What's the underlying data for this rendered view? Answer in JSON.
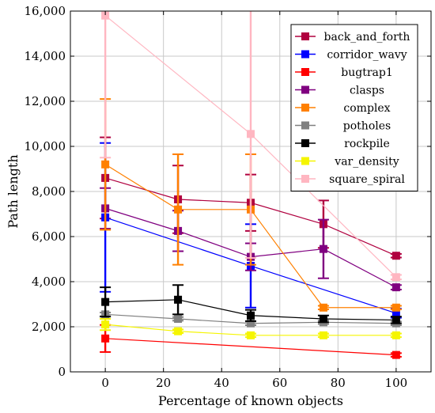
{
  "chart_data": {
    "type": "line",
    "title": "",
    "xlabel": "Percentage of known objects",
    "ylabel": "Path length",
    "xlim": [
      -12,
      112
    ],
    "ylim": [
      0,
      16000
    ],
    "x_ticks": [
      0,
      20,
      40,
      60,
      80,
      100
    ],
    "x_tick_labels": [
      "0",
      "20",
      "40",
      "60",
      "80",
      "100"
    ],
    "y_ticks": [
      0,
      2000,
      4000,
      6000,
      8000,
      10000,
      12000,
      14000,
      16000
    ],
    "y_tick_labels": [
      "0",
      "2,000",
      "4,000",
      "6,000",
      "8,000",
      "10,000",
      "12,000",
      "14,000",
      "16,000"
    ],
    "grid": true,
    "legend_position": "top-right",
    "series": [
      {
        "name": "back_and_forth",
        "color": "#b0003f",
        "marker": "square",
        "points": [
          {
            "x": 0,
            "y": 8600,
            "err": 1800
          },
          {
            "x": 25,
            "y": 7650,
            "err": 1500
          },
          {
            "x": 50,
            "y": 7500,
            "err": 1250
          },
          {
            "x": 75,
            "y": 6550,
            "err": 1050
          },
          {
            "x": 100,
            "y": 5150,
            "err": 80
          }
        ]
      },
      {
        "name": "corridor_wavy",
        "color": "#0000ff",
        "marker": "square",
        "points": [
          {
            "x": 0,
            "y": 6850,
            "err": 3300
          },
          {
            "x": 50,
            "y": 4700,
            "err": 1850
          },
          {
            "x": 100,
            "y": 2600,
            "err": 200
          }
        ]
      },
      {
        "name": "bugtrap1",
        "color": "#ff0000",
        "marker": "square",
        "points": [
          {
            "x": 0,
            "y": 1480,
            "err": 600
          },
          {
            "x": 100,
            "y": 750,
            "err": 80
          }
        ]
      },
      {
        "name": "clasps",
        "color": "#800080",
        "marker": "square",
        "points": [
          {
            "x": 0,
            "y": 7250,
            "err": 900
          },
          {
            "x": 25,
            "y": 6250,
            "err": 900
          },
          {
            "x": 50,
            "y": 5100,
            "err": 600
          },
          {
            "x": 75,
            "y": 5450,
            "err": 1300
          },
          {
            "x": 100,
            "y": 3750,
            "err": 100
          }
        ]
      },
      {
        "name": "complex",
        "color": "#ff8000",
        "marker": "square",
        "points": [
          {
            "x": 0,
            "y": 9200,
            "err": 2900
          },
          {
            "x": 25,
            "y": 7200,
            "err": 2450
          },
          {
            "x": 50,
            "y": 7200,
            "err": 2450
          },
          {
            "x": 75,
            "y": 2850,
            "err": 80
          },
          {
            "x": 100,
            "y": 2850,
            "err": 80
          }
        ]
      },
      {
        "name": "potholes",
        "color": "#808080",
        "marker": "square",
        "points": [
          {
            "x": 0,
            "y": 2550,
            "err": 80
          },
          {
            "x": 25,
            "y": 2350,
            "err": 80
          },
          {
            "x": 50,
            "y": 2150,
            "err": 80
          },
          {
            "x": 75,
            "y": 2200,
            "err": 80
          },
          {
            "x": 100,
            "y": 2150,
            "err": 80
          }
        ]
      },
      {
        "name": "rockpile",
        "color": "#000000",
        "marker": "square",
        "points": [
          {
            "x": 0,
            "y": 3100,
            "err": 650
          },
          {
            "x": 25,
            "y": 3200,
            "err": 650
          },
          {
            "x": 50,
            "y": 2500,
            "err": 250
          },
          {
            "x": 75,
            "y": 2350,
            "err": 150
          },
          {
            "x": 100,
            "y": 2300,
            "err": 150
          }
        ]
      },
      {
        "name": "var_density",
        "color": "#f5f500",
        "marker": "square",
        "points": [
          {
            "x": 0,
            "y": 2100,
            "err": 250
          },
          {
            "x": 25,
            "y": 1800,
            "err": 80
          },
          {
            "x": 50,
            "y": 1620,
            "err": 80
          },
          {
            "x": 75,
            "y": 1620,
            "err": 80
          },
          {
            "x": 100,
            "y": 1620,
            "err": 80
          }
        ]
      },
      {
        "name": "square_spiral",
        "color": "#ffb6c1",
        "marker": "square",
        "points": [
          {
            "x": 0,
            "y": 15800,
            "err": 6300
          },
          {
            "x": 50,
            "y": 10550,
            "err": 5500
          },
          {
            "x": 100,
            "y": 4200,
            "err": 100
          }
        ]
      }
    ]
  }
}
